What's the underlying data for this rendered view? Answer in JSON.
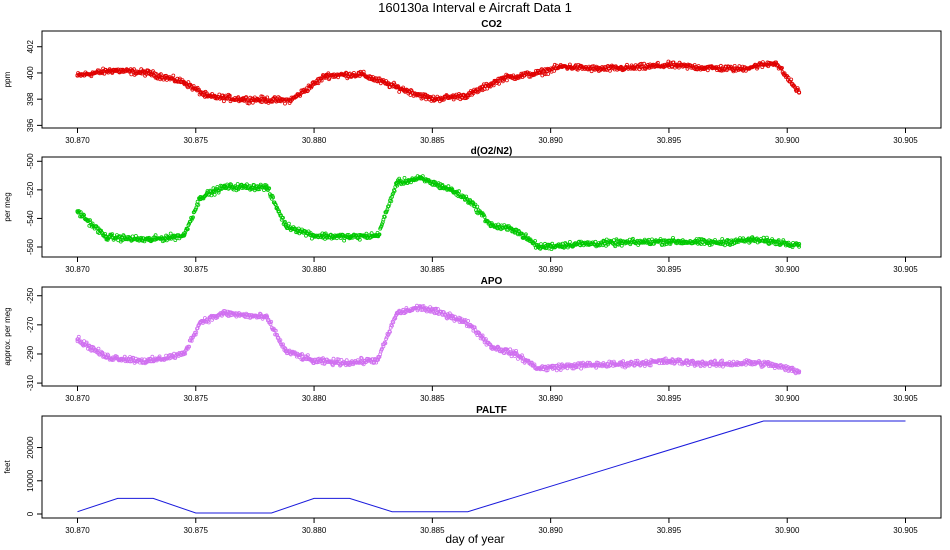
{
  "figure": {
    "title": "160130a   Interval e Aircraft Data 1",
    "xlabel": "day of year"
  },
  "chart_data": [
    {
      "type": "scatter",
      "title": "CO2",
      "ylabel": "ppm",
      "xlim": [
        30.8685,
        30.9065
      ],
      "ylim": [
        395.8,
        403.2
      ],
      "xticks": [
        30.87,
        30.875,
        30.88,
        30.885,
        30.89,
        30.895,
        30.9,
        30.905
      ],
      "xtick_labels": [
        "30.870",
        "30.875",
        "30.880",
        "30.885",
        "30.890",
        "30.895",
        "30.900",
        "30.905"
      ],
      "yticks": [
        396,
        398,
        400,
        402
      ],
      "ytick_labels": [
        "396",
        "398",
        "400",
        "402"
      ],
      "color": "#e00000",
      "marker": "hollow-circle",
      "data_x_range": [
        30.87,
        30.9005
      ],
      "series": [
        {
          "x": [
            30.87,
            30.8715,
            30.873,
            30.8745,
            30.8755,
            30.877,
            30.879,
            30.8805,
            30.882,
            30.8835,
            30.885,
            30.8865,
            30.888,
            30.8895,
            30.8905,
            30.892,
            30.8935,
            30.895,
            30.8965,
            30.898,
            30.8995,
            30.9005
          ],
          "y": [
            399.8,
            400.2,
            400.0,
            399.3,
            398.2,
            398.0,
            397.9,
            399.8,
            399.9,
            398.9,
            398.0,
            398.3,
            399.6,
            400.0,
            400.5,
            400.3,
            400.4,
            400.6,
            400.4,
            400.3,
            400.8,
            398.5
          ]
        }
      ]
    },
    {
      "type": "scatter",
      "title": "d(O2/N2)",
      "ylabel": "per meg",
      "xlim": [
        30.8685,
        30.9065
      ],
      "ylim": [
        -567,
        -497
      ],
      "xticks": [
        30.87,
        30.875,
        30.88,
        30.885,
        30.89,
        30.895,
        30.9,
        30.905
      ],
      "xtick_labels": [
        "30.870",
        "30.875",
        "30.880",
        "30.885",
        "30.890",
        "30.895",
        "30.900",
        "30.905"
      ],
      "yticks": [
        -560,
        -540,
        -520,
        -500
      ],
      "ytick_labels": [
        "-560",
        "-540",
        "-520",
        "-500"
      ],
      "color": "#00c800",
      "marker": "hollow-circle",
      "data_x_range": [
        30.87,
        30.9005
      ],
      "series": [
        {
          "x": [
            30.87,
            30.8712,
            30.873,
            30.8745,
            30.8752,
            30.8762,
            30.878,
            30.8788,
            30.88,
            30.8815,
            30.8827,
            30.8835,
            30.8845,
            30.8858,
            30.8866,
            30.8875,
            30.8885,
            30.8895,
            30.891,
            30.893,
            30.895,
            30.897,
            30.8985,
            30.8992,
            30.9005
          ],
          "y": [
            -535,
            -553,
            -555,
            -552,
            -525,
            -518,
            -518,
            -545,
            -552,
            -553,
            -552,
            -515,
            -512,
            -520,
            -528,
            -545,
            -548,
            -560,
            -558,
            -557,
            -556,
            -557,
            -555,
            -556,
            -558
          ]
        }
      ]
    },
    {
      "type": "scatter",
      "title": "APO",
      "ylabel": "approx. per meg",
      "xlim": [
        30.8685,
        30.9065
      ],
      "ylim": [
        -312,
        -244
      ],
      "xticks": [
        30.87,
        30.875,
        30.88,
        30.885,
        30.89,
        30.895,
        30.9,
        30.905
      ],
      "xtick_labels": [
        "30.870",
        "30.875",
        "30.880",
        "30.885",
        "30.890",
        "30.895",
        "30.900",
        "30.905"
      ],
      "yticks": [
        -310,
        -290,
        -270,
        -250
      ],
      "ytick_labels": [
        "-310",
        "-290",
        "-270",
        "-250"
      ],
      "color": "#d070f0",
      "marker": "hollow-circle",
      "data_x_range": [
        30.87,
        30.9005
      ],
      "series": [
        {
          "x": [
            30.87,
            30.8712,
            30.873,
            30.8745,
            30.8752,
            30.8762,
            30.878,
            30.8788,
            30.88,
            30.8815,
            30.8827,
            30.8835,
            30.8845,
            30.8858,
            30.8866,
            30.8875,
            30.8885,
            30.8895,
            30.891,
            30.893,
            30.895,
            30.897,
            30.8985,
            30.8992,
            30.9005
          ],
          "y": [
            -280,
            -292,
            -295,
            -290,
            -268,
            -262,
            -265,
            -288,
            -295,
            -296,
            -294,
            -262,
            -258,
            -264,
            -270,
            -285,
            -290,
            -300,
            -298,
            -297,
            -295,
            -297,
            -296,
            -297,
            -302
          ]
        }
      ]
    },
    {
      "type": "line",
      "title": "PALTF",
      "ylabel": "feet",
      "xlim": [
        30.8685,
        30.9065
      ],
      "ylim": [
        -1200,
        29500
      ],
      "xticks": [
        30.87,
        30.875,
        30.88,
        30.885,
        30.89,
        30.895,
        30.9,
        30.905
      ],
      "xtick_labels": [
        "30.870",
        "30.875",
        "30.880",
        "30.885",
        "30.890",
        "30.895",
        "30.900",
        "30.905"
      ],
      "yticks": [
        0,
        10000,
        20000
      ],
      "ytick_labels": [
        "0",
        "10000",
        "20000"
      ],
      "color": "#1a1adc",
      "series": [
        {
          "x": [
            30.87,
            30.8717,
            30.8732,
            30.875,
            30.8765,
            30.8782,
            30.88,
            30.8815,
            30.8833,
            30.885,
            30.8865,
            30.899,
            30.905
          ],
          "y": [
            700,
            4700,
            4700,
            300,
            300,
            300,
            4700,
            4700,
            700,
            700,
            700,
            28000,
            28000
          ]
        }
      ]
    }
  ]
}
